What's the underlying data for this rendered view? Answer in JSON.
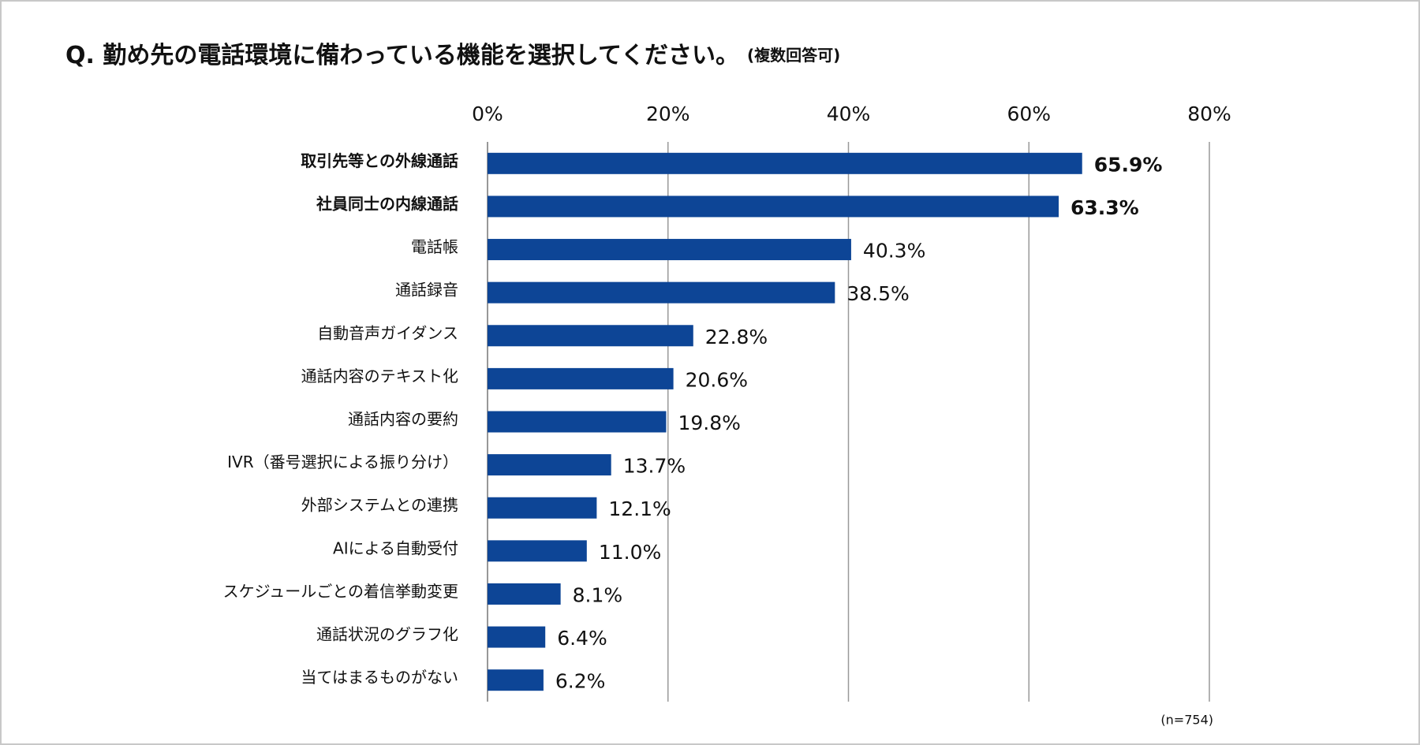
{
  "chart_data": {
    "type": "barh",
    "title": "Q. 勤め先の電話環境に備わっている機能を選択してください。",
    "subtitle": "(複数回答可)",
    "note": "(n=754)",
    "categories": [
      "取引先等との外線通話",
      "社員同士の内線通話",
      "電話帳",
      "通話録音",
      "自動音声ガイダンス",
      "通話内容のテキスト化",
      "通話内容の要約",
      "IVR（番号選択による振り分け）",
      "外部システムとの連携",
      "AIによる自動受付",
      "スケジュールごとの着信挙動変更",
      "通話状況のグラフ化",
      "当てはまるものがない"
    ],
    "values": [
      65.9,
      63.3,
      40.3,
      38.5,
      22.8,
      20.6,
      19.8,
      13.7,
      12.1,
      11.0,
      8.1,
      6.4,
      6.2
    ],
    "value_labels": [
      "65.9%",
      "63.3%",
      "40.3%",
      "38.5%",
      "22.8%",
      "20.6%",
      "19.8%",
      "13.7%",
      "12.1%",
      "11.0%",
      "8.1%",
      "6.4%",
      "6.2%"
    ],
    "color": "#0d4596",
    "xlim": [
      0,
      80
    ],
    "xticks": [
      {
        "value": 0,
        "label": "0%"
      },
      {
        "value": 20,
        "label": "20%"
      },
      {
        "value": 40,
        "label": "40%"
      },
      {
        "value": 60,
        "label": "60%"
      },
      {
        "value": 80,
        "label": "80%"
      }
    ],
    "grid": true
  }
}
